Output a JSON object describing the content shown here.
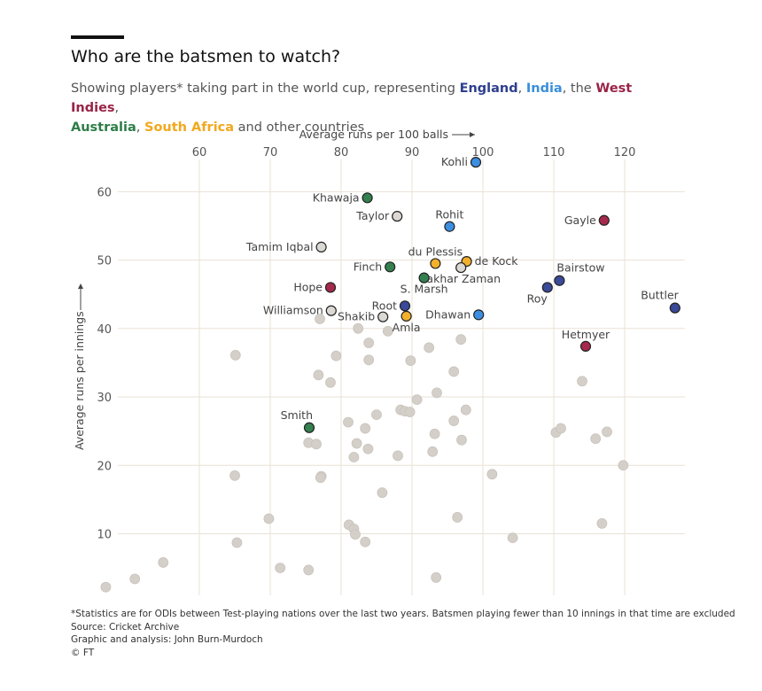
{
  "header": {
    "title": "Who are the batsmen to watch?",
    "subtitle_prefix": "Showing players* taking part in the world cup, representing ",
    "subtitle_parts": [
      {
        "text": "England",
        "color": "#2f3f8f",
        "bold": true
      },
      {
        "text": ", ",
        "bold": false
      },
      {
        "text": "India",
        "color": "#3a8fd9",
        "bold": true
      },
      {
        "text": ", the ",
        "bold": false
      },
      {
        "text": "West Indies",
        "color": "#9a2346",
        "bold": true
      },
      {
        "text": ",",
        "bold": false
      },
      {
        "text": "Australia",
        "color": "#2e7d47",
        "bold": true
      },
      {
        "text": ", ",
        "bold": false
      },
      {
        "text": "South Africa",
        "color": "#f0a81e",
        "bold": true
      },
      {
        "text": " and other countries",
        "bold": false
      }
    ]
  },
  "notes": [
    "*Statistics are for ODIs between Test-playing nations over the last two years. Batsmen playing fewer than 10 innings in that time are excluded",
    "Source: Cricket Archive",
    "Graphic and analysis: John Burn-Murdoch",
    "© FT"
  ],
  "chart_data": {
    "type": "scatter",
    "xlabel": "Average runs per 100 balls →",
    "ylabel": "Average runs per innings →",
    "xlim": [
      46,
      127.5
    ],
    "ylim": [
      1,
      66
    ],
    "x_ticks": [
      60,
      70,
      80,
      90,
      100,
      110,
      120
    ],
    "y_ticks": [
      10,
      20,
      30,
      40,
      50,
      60
    ],
    "x_axis_position": "top",
    "grid": true,
    "colors": {
      "England": "#3a4a98",
      "India": "#3d8ee0",
      "West Indies": "#a5294b",
      "Australia": "#34804f",
      "South Africa": "#f2b02c",
      "Other": "#d4cfc9",
      "other_highlight": "#dcd8d3"
    },
    "labelled_players": [
      {
        "name": "Kohli",
        "x": 99.0,
        "y": 64.3,
        "team": "India",
        "label_side": "left"
      },
      {
        "name": "Khawaja",
        "x": 83.7,
        "y": 59.1,
        "team": "Australia",
        "label_side": "left"
      },
      {
        "name": "Taylor",
        "x": 87.9,
        "y": 56.4,
        "team": "Other",
        "label_side": "left"
      },
      {
        "name": "Rohit",
        "x": 95.3,
        "y": 54.9,
        "team": "India",
        "label_side": "above"
      },
      {
        "name": "Gayle",
        "x": 117.1,
        "y": 55.8,
        "team": "West Indies",
        "label_side": "left"
      },
      {
        "name": "Tamim Iqbal",
        "x": 77.2,
        "y": 51.9,
        "team": "Other",
        "label_side": "left"
      },
      {
        "name": "du Plessis",
        "x": 93.3,
        "y": 49.5,
        "team": "South Africa",
        "label_side": "above"
      },
      {
        "name": "de Kock",
        "x": 97.7,
        "y": 49.8,
        "team": "South Africa",
        "label_side": "right"
      },
      {
        "name": "Finch",
        "x": 86.9,
        "y": 49.0,
        "team": "Australia",
        "label_side": "left"
      },
      {
        "name": "Fakhar Zaman",
        "x": 96.9,
        "y": 48.9,
        "team": "Other",
        "label_side": "below"
      },
      {
        "name": "S. Marsh",
        "x": 91.7,
        "y": 47.4,
        "team": "Australia",
        "label_side": "below"
      },
      {
        "name": "Bairstow",
        "x": 110.8,
        "y": 47.0,
        "team": "England",
        "label_side": "above-right"
      },
      {
        "name": "Roy",
        "x": 109.1,
        "y": 46.0,
        "team": "England",
        "label_side": "below-left"
      },
      {
        "name": "Hope",
        "x": 78.5,
        "y": 46.0,
        "team": "West Indies",
        "label_side": "left"
      },
      {
        "name": "Root",
        "x": 89.0,
        "y": 43.3,
        "team": "England",
        "label_side": "left"
      },
      {
        "name": "Williamson",
        "x": 78.6,
        "y": 42.6,
        "team": "Other",
        "label_side": "left"
      },
      {
        "name": "Shakib",
        "x": 85.9,
        "y": 41.7,
        "team": "Other",
        "label_side": "left"
      },
      {
        "name": "Amla",
        "x": 89.2,
        "y": 41.8,
        "team": "South Africa",
        "label_side": "below"
      },
      {
        "name": "Dhawan",
        "x": 99.4,
        "y": 42.0,
        "team": "India",
        "label_side": "left"
      },
      {
        "name": "Buttler",
        "x": 127.1,
        "y": 43.0,
        "team": "England",
        "label_side": "above-left"
      },
      {
        "name": "Hetmyer",
        "x": 114.5,
        "y": 37.4,
        "team": "West Indies",
        "label_side": "above"
      },
      {
        "name": "Smith",
        "x": 75.5,
        "y": 25.5,
        "team": "Australia",
        "label_side": "above-left"
      }
    ],
    "other_points": [
      [
        46.8,
        2.2
      ],
      [
        50.9,
        3.4
      ],
      [
        54.9,
        5.8
      ],
      [
        65.1,
        36.1
      ],
      [
        65.0,
        18.5
      ],
      [
        65.3,
        8.7
      ],
      [
        69.8,
        12.2
      ],
      [
        71.4,
        5.0
      ],
      [
        75.4,
        4.7
      ],
      [
        75.4,
        23.3
      ],
      [
        76.5,
        23.1
      ],
      [
        76.8,
        33.2
      ],
      [
        77.2,
        18.4
      ],
      [
        77.1,
        18.2
      ],
      [
        77.0,
        41.4
      ],
      [
        78.5,
        32.1
      ],
      [
        79.3,
        36.0
      ],
      [
        81.0,
        26.3
      ],
      [
        81.1,
        11.3
      ],
      [
        81.8,
        10.7
      ],
      [
        81.8,
        21.2
      ],
      [
        82.2,
        23.2
      ],
      [
        82.0,
        9.9
      ],
      [
        82.4,
        40.0
      ],
      [
        83.4,
        25.4
      ],
      [
        83.4,
        8.8
      ],
      [
        83.9,
        37.9
      ],
      [
        83.8,
        22.4
      ],
      [
        83.9,
        35.4
      ],
      [
        85.0,
        27.4
      ],
      [
        85.8,
        16.0
      ],
      [
        86.6,
        39.6
      ],
      [
        88.0,
        21.4
      ],
      [
        88.4,
        28.1
      ],
      [
        89.0,
        27.9
      ],
      [
        89.7,
        27.8
      ],
      [
        89.8,
        35.3
      ],
      [
        90.7,
        29.6
      ],
      [
        92.4,
        37.2
      ],
      [
        92.9,
        22.0
      ],
      [
        93.2,
        24.6
      ],
      [
        93.4,
        3.6
      ],
      [
        93.5,
        30.6
      ],
      [
        95.9,
        33.7
      ],
      [
        95.9,
        26.5
      ],
      [
        96.4,
        12.4
      ],
      [
        96.9,
        38.4
      ],
      [
        97.0,
        23.7
      ],
      [
        97.6,
        28.1
      ],
      [
        101.3,
        18.7
      ],
      [
        104.2,
        9.4
      ],
      [
        110.3,
        24.8
      ],
      [
        111.0,
        25.4
      ],
      [
        114.0,
        32.3
      ],
      [
        115.9,
        23.9
      ],
      [
        116.8,
        11.5
      ],
      [
        117.5,
        24.9
      ],
      [
        119.8,
        20.0
      ]
    ]
  }
}
